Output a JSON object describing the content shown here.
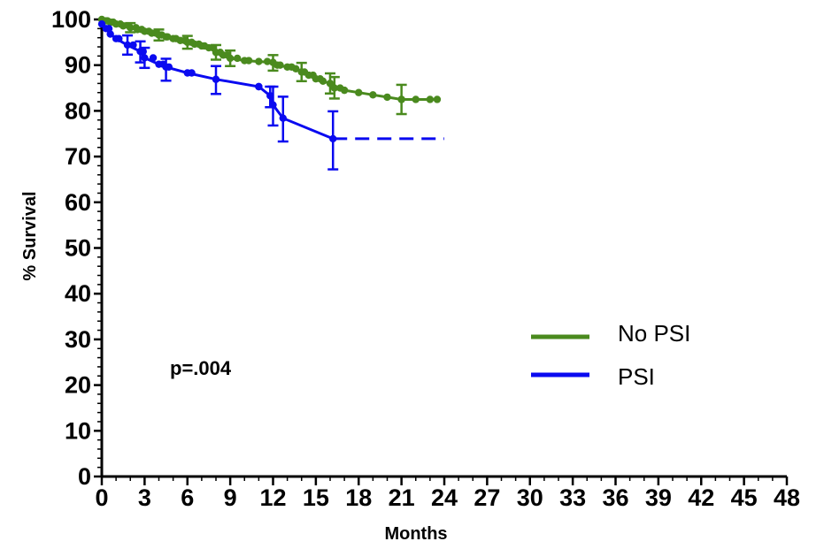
{
  "chart_data": {
    "type": "line",
    "subtype": "kaplan-meier",
    "title": "",
    "xlabel": "Months",
    "ylabel": "% Survival",
    "xlim": [
      0,
      48
    ],
    "ylim": [
      0,
      100
    ],
    "x_ticks": [
      0,
      3,
      6,
      9,
      12,
      15,
      18,
      21,
      24,
      27,
      30,
      33,
      36,
      39,
      42,
      45,
      48
    ],
    "y_ticks": [
      0,
      10,
      20,
      30,
      40,
      50,
      60,
      70,
      80,
      90,
      100
    ],
    "grid": false,
    "legend_position": "right",
    "annotation": "p=.004",
    "series": [
      {
        "name": "No PSI",
        "color": "#4a8a1e",
        "step_x": [
          0,
          0.3,
          0.6,
          1.0,
          1.5,
          2.0,
          2.5,
          3.0,
          3.5,
          4.0,
          4.5,
          5.0,
          5.5,
          6.0,
          6.5,
          7.0,
          7.5,
          8.0,
          8.5,
          9.0,
          10.0,
          11.0,
          12.0,
          12.3,
          13.0,
          13.6,
          14.0,
          14.5,
          15.0,
          15.5,
          16.0,
          16.3,
          17.0,
          18.0,
          19.0,
          20.0,
          21.0,
          22.0,
          23.0,
          23.5
        ],
        "step_y": [
          100,
          99.7,
          99.4,
          99.0,
          98.6,
          98.2,
          97.8,
          97.4,
          97.0,
          96.6,
          96.2,
          95.8,
          95.4,
          95.0,
          94.6,
          94.2,
          93.8,
          92.8,
          92.2,
          91.5,
          91.0,
          90.8,
          90.6,
          90.0,
          89.6,
          89.2,
          88.5,
          87.8,
          87.0,
          86.5,
          86.0,
          85.0,
          84.5,
          84.0,
          83.5,
          83.0,
          82.5,
          82.5,
          82.5,
          82.5
        ],
        "censor_x": [
          0.4,
          0.8,
          1.3,
          1.9,
          2.4,
          2.8,
          3.3,
          3.8,
          4.2,
          4.6,
          5.2,
          5.8,
          6.3,
          6.8,
          7.2,
          7.8,
          8.3,
          8.8,
          9.5,
          10.3,
          11.6,
          12.5,
          13.3,
          14.2,
          14.8,
          15.3,
          16.7,
          21.0
        ],
        "errorbars": [
          {
            "x": 2.0,
            "y": 98.2,
            "low": 97.2,
            "high": 99.2
          },
          {
            "x": 4.0,
            "y": 96.6,
            "low": 95.4,
            "high": 97.8
          },
          {
            "x": 6.0,
            "y": 95.0,
            "low": 93.6,
            "high": 96.4
          },
          {
            "x": 8.0,
            "y": 92.8,
            "low": 91.2,
            "high": 94.4
          },
          {
            "x": 9.0,
            "y": 91.5,
            "low": 89.8,
            "high": 93.2
          },
          {
            "x": 12.0,
            "y": 90.6,
            "low": 88.8,
            "high": 92.2
          },
          {
            "x": 14.0,
            "y": 88.5,
            "low": 86.5,
            "high": 90.5
          },
          {
            "x": 16.0,
            "y": 86.0,
            "low": 83.8,
            "high": 88.2
          },
          {
            "x": 16.3,
            "y": 85.0,
            "low": 82.7,
            "high": 87.4
          },
          {
            "x": 21.0,
            "y": 82.5,
            "low": 79.3,
            "high": 85.7
          }
        ],
        "extension_to": 23.5
      },
      {
        "name": "PSI",
        "color": "#0a0af0",
        "step_x": [
          0,
          0.3,
          0.6,
          1.0,
          1.8,
          2.7,
          3.0,
          4.0,
          4.5,
          6.0,
          8.0,
          11.0,
          11.8,
          12.0,
          12.7,
          16.2
        ],
        "step_y": [
          99.0,
          98.0,
          96.8,
          95.8,
          94.4,
          93.0,
          91.6,
          90.2,
          89.6,
          88.3,
          86.9,
          85.3,
          83.3,
          81.3,
          78.4,
          73.9
        ],
        "censor_x": [
          0.5,
          1.2,
          2.2,
          2.9,
          3.6,
          4.3,
          4.7,
          6.3,
          11.0
        ],
        "errorbars": [
          {
            "x": 1.8,
            "y": 94.4,
            "low": 92.3,
            "high": 96.5
          },
          {
            "x": 2.7,
            "y": 93.0,
            "low": 90.6,
            "high": 95.2
          },
          {
            "x": 3.0,
            "y": 91.6,
            "low": 89.4,
            "high": 93.8
          },
          {
            "x": 4.5,
            "y": 89.6,
            "low": 86.6,
            "high": 91.4
          },
          {
            "x": 8.0,
            "y": 86.9,
            "low": 83.7,
            "high": 89.8
          },
          {
            "x": 11.8,
            "y": 83.3,
            "low": 80.8,
            "high": 85.3
          },
          {
            "x": 12.0,
            "y": 81.3,
            "low": 76.8,
            "high": 85.3
          },
          {
            "x": 12.7,
            "y": 78.4,
            "low": 73.3,
            "high": 83.1
          },
          {
            "x": 16.2,
            "y": 73.9,
            "low": 67.2,
            "high": 79.9
          }
        ],
        "extension_to": 24.0
      }
    ]
  }
}
